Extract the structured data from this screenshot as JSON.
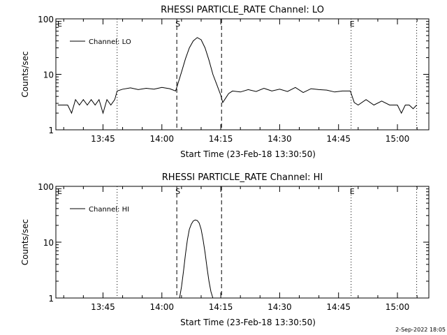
{
  "footer": {
    "timestamp": "2-Sep-2022 18:05"
  },
  "chart_data": [
    {
      "type": "line",
      "title": "RHESSI PARTICLE_RATE Channel: LO",
      "xlabel": "Start Time (23-Feb-18 13:30:50)",
      "ylabel": "Counts/sec",
      "yscale": "log",
      "ylim": [
        1,
        100
      ],
      "ytick_labels": [
        "1",
        "10",
        "100"
      ],
      "xlim_minutes": [
        13.0,
        108.0
      ],
      "xtick_labels": [
        "13:45",
        "14:00",
        "14:15",
        "14:30",
        "14:45",
        "15:00"
      ],
      "xtick_minutes": [
        25,
        40,
        55,
        70,
        85,
        100
      ],
      "legend": {
        "label": "Channel: LO",
        "placement": "top-left"
      },
      "markers": [
        {
          "label": "E",
          "minute": 13.0,
          "style": "none"
        },
        {
          "label": "",
          "minute": 28.6,
          "style": "dotted"
        },
        {
          "label": "S",
          "minute": 43.8,
          "style": "dashed"
        },
        {
          "label": "",
          "minute": 55.2,
          "style": "dashed"
        },
        {
          "label": "E",
          "minute": 88.2,
          "style": "dotted"
        },
        {
          "label": "",
          "minute": 104.9,
          "style": "dotted"
        }
      ],
      "series": [
        {
          "name": "Channel: LO",
          "x": [
            13.5,
            16,
            17,
            18,
            19,
            20,
            21,
            22,
            23,
            24,
            25,
            26,
            27,
            28,
            28.6,
            30,
            32,
            34,
            36,
            38,
            40,
            42,
            43.5,
            44,
            45,
            46,
            47,
            48,
            49,
            50,
            51,
            52,
            53,
            54,
            55,
            55.5,
            56,
            57,
            58,
            60,
            62,
            64,
            66,
            68,
            70,
            72,
            74,
            76,
            78,
            80,
            82,
            84,
            86,
            88,
            89,
            90,
            92,
            94,
            96,
            98,
            100,
            101,
            102,
            103,
            104,
            104.9
          ],
          "y": [
            2.8,
            2.8,
            2.0,
            3.5,
            2.8,
            3.5,
            2.8,
            3.5,
            2.8,
            3.5,
            2.0,
            3.5,
            2.8,
            3.5,
            5.0,
            5.4,
            5.7,
            5.3,
            5.6,
            5.4,
            5.8,
            5.5,
            5.0,
            6.5,
            11,
            19,
            30,
            40,
            46,
            42,
            30,
            18,
            10,
            6.5,
            4.2,
            3.1,
            3.5,
            4.5,
            5.0,
            4.8,
            5.3,
            4.9,
            5.6,
            5.0,
            5.4,
            4.9,
            5.8,
            4.7,
            5.5,
            5.3,
            5.2,
            4.8,
            5.0,
            5.0,
            3.1,
            2.8,
            3.5,
            2.8,
            3.3,
            2.8,
            2.8,
            2.0,
            2.8,
            2.8,
            2.4,
            2.8
          ]
        }
      ]
    },
    {
      "type": "line",
      "title": "RHESSI PARTICLE_RATE Channel: HI",
      "xlabel": "Start Time (23-Feb-18 13:30:50)",
      "ylabel": "Counts/sec",
      "yscale": "log",
      "ylim": [
        1,
        100
      ],
      "ytick_labels": [
        "1",
        "10",
        "100"
      ],
      "xlim_minutes": [
        13.0,
        108.0
      ],
      "xtick_labels": [
        "13:45",
        "14:00",
        "14:15",
        "14:30",
        "14:45",
        "15:00"
      ],
      "xtick_minutes": [
        25,
        40,
        55,
        70,
        85,
        100
      ],
      "legend": {
        "label": "Channel: HI",
        "placement": "top-left"
      },
      "markers": [
        {
          "label": "E",
          "minute": 13.0,
          "style": "none"
        },
        {
          "label": "",
          "minute": 28.6,
          "style": "dotted"
        },
        {
          "label": "S",
          "minute": 43.8,
          "style": "dashed"
        },
        {
          "label": "",
          "minute": 55.2,
          "style": "dashed"
        },
        {
          "label": "E",
          "minute": 88.2,
          "style": "dotted"
        },
        {
          "label": "",
          "minute": 104.9,
          "style": "dotted"
        }
      ],
      "series": [
        {
          "name": "Channel: HI",
          "x": [
            44.5,
            45,
            45.5,
            46,
            46.5,
            47,
            47.5,
            48,
            48.5,
            49,
            49.5,
            50,
            50.5,
            51,
            51.5,
            52,
            52.5,
            53
          ],
          "y": [
            1.0,
            1.6,
            3.0,
            6.0,
            11,
            17,
            21,
            24,
            25,
            24.5,
            22,
            17,
            11,
            6.5,
            3.5,
            2.0,
            1.3,
            1.0
          ]
        }
      ]
    }
  ]
}
